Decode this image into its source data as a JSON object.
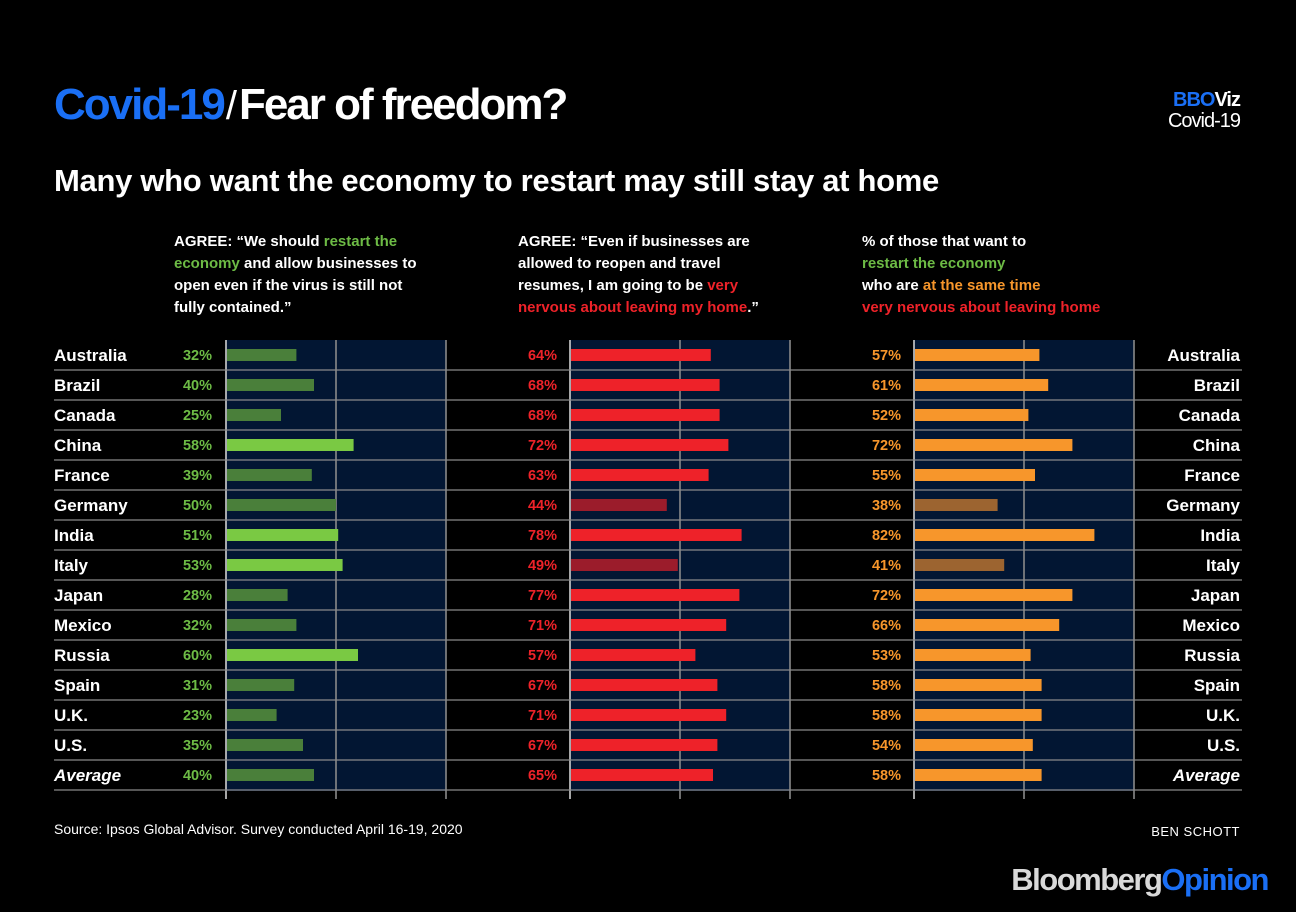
{
  "header": {
    "topic": "Covid-19",
    "title": "Fear of freedom?",
    "brand_line1_a": "BBO",
    "brand_line1_b": "Viz",
    "brand_line2": "Covid-19",
    "subtitle": "Many who want the economy to restart may still stay at home"
  },
  "column_headers": [
    {
      "parts": [
        {
          "text": "AGREE: “We should ",
          "color": "white"
        },
        {
          "text": "restart the economy",
          "color": "green"
        },
        {
          "text": " and allow businesses to open even if the virus is still not fully contained.”",
          "color": "white"
        }
      ]
    },
    {
      "parts": [
        {
          "text": "AGREE: “Even if businesses are allowed to reopen and travel resumes, I am going to be ",
          "color": "white"
        },
        {
          "text": "very nervous about leaving my home",
          "color": "red"
        },
        {
          "text": ".”",
          "color": "white"
        }
      ]
    },
    {
      "parts": [
        {
          "text": "% of those that want to",
          "color": "white",
          "br": true
        },
        {
          "text": "restart the economy",
          "color": "green",
          "br": true
        },
        {
          "text": "who are ",
          "color": "white"
        },
        {
          "text": "at the same time",
          "color": "orange",
          "br": true
        },
        {
          "text": "very nervous about leaving home",
          "color": "red"
        }
      ]
    }
  ],
  "colors": {
    "green_bright": "#7ac943",
    "green_dim": "#4a7f3a",
    "green_label": "#6dbb45",
    "red_bright": "#ee2229",
    "red_dim": "#9b1c2b",
    "red_label": "#ee2229",
    "orange_bright": "#f7962b",
    "orange_dim": "#9c6430",
    "orange_label": "#f7962b",
    "panel_bg": "#021633",
    "grid": "#8a8a8a"
  },
  "chart_data": {
    "type": "bar",
    "orientation": "horizontal",
    "title": "Many who want the economy to restart may still stay at home",
    "categories": [
      "Australia",
      "Brazil",
      "Canada",
      "China",
      "France",
      "Germany",
      "India",
      "Italy",
      "Japan",
      "Mexico",
      "Russia",
      "Spain",
      "U.K.",
      "U.S.",
      "Average"
    ],
    "xlim": [
      0,
      100
    ],
    "gridlines": [
      0,
      50,
      100
    ],
    "unit": "%",
    "series": [
      {
        "name": "Agree: we should restart the economy",
        "values": [
          32,
          40,
          25,
          58,
          39,
          50,
          51,
          53,
          28,
          32,
          60,
          31,
          23,
          35,
          40
        ],
        "highlight": [
          false,
          false,
          false,
          true,
          false,
          false,
          true,
          true,
          false,
          false,
          true,
          false,
          false,
          false,
          false
        ]
      },
      {
        "name": "Agree: very nervous about leaving my home",
        "values": [
          64,
          68,
          68,
          72,
          63,
          44,
          78,
          49,
          77,
          71,
          57,
          67,
          71,
          67,
          65
        ],
        "highlight": [
          true,
          true,
          true,
          true,
          true,
          false,
          true,
          false,
          true,
          true,
          true,
          true,
          true,
          true,
          true
        ]
      },
      {
        "name": "% of restart supporters who are also very nervous",
        "values": [
          57,
          61,
          52,
          72,
          55,
          38,
          82,
          41,
          72,
          66,
          53,
          58,
          58,
          54,
          58
        ],
        "highlight": [
          true,
          true,
          true,
          true,
          true,
          false,
          true,
          false,
          true,
          true,
          true,
          true,
          true,
          true,
          true
        ]
      }
    ]
  },
  "footer": {
    "source": "Source: Ipsos Global Advisor. Survey conducted April 16-19, 2020",
    "author": "BEN SCHOTT",
    "logo_a": "Bloomberg",
    "logo_b": "Opinion"
  }
}
